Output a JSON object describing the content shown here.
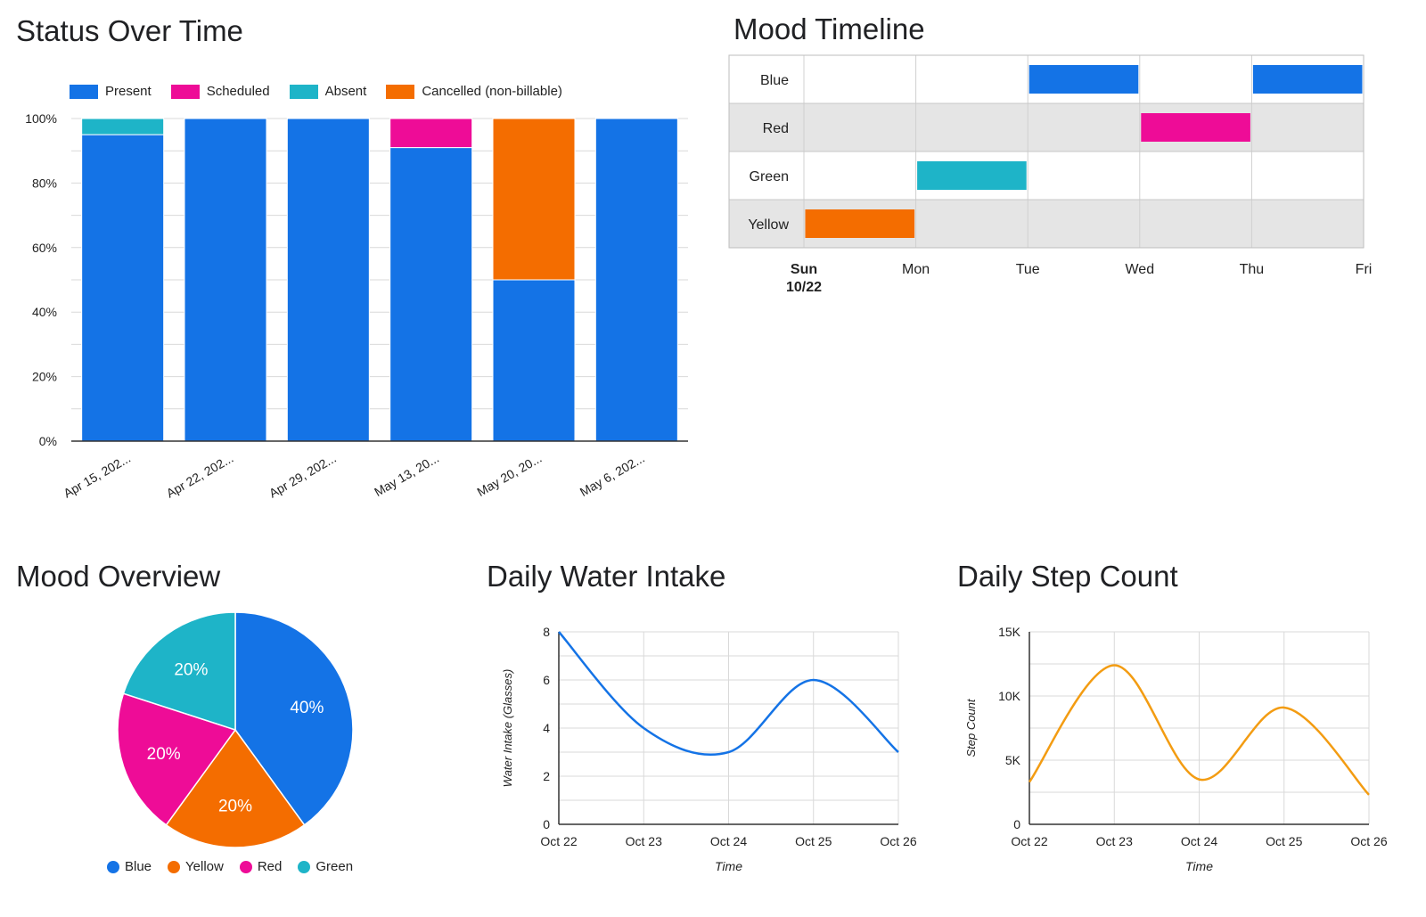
{
  "colors": {
    "blue": "#1473e6",
    "pink": "#ee0c97",
    "teal": "#1eb4c8",
    "orange": "#f46d00",
    "line_orange": "#f39c12",
    "grid": "#d9d9d9",
    "band": "#e5e5e5"
  },
  "chart_data": [
    {
      "type": "bar",
      "stacked": true,
      "percent": true,
      "title": "Status Over Time",
      "categories": [
        "Apr 15, 202...",
        "Apr 22, 202...",
        "Apr 29, 202...",
        "May 13, 20...",
        "May 20, 20...",
        "May 6, 202..."
      ],
      "series": [
        {
          "name": "Present",
          "color": "#1473e6",
          "values": [
            95,
            100,
            100,
            91,
            50,
            100
          ]
        },
        {
          "name": "Scheduled",
          "color": "#ee0c97",
          "values": [
            0,
            0,
            0,
            9,
            0,
            0
          ]
        },
        {
          "name": "Absent",
          "color": "#1eb4c8",
          "values": [
            5,
            0,
            0,
            0,
            0,
            0
          ]
        },
        {
          "name": "Cancelled (non-billable)",
          "color": "#f46d00",
          "values": [
            0,
            0,
            0,
            0,
            50,
            0
          ]
        }
      ],
      "yticks": [
        "0%",
        "20%",
        "40%",
        "60%",
        "80%",
        "100%"
      ],
      "ylim": [
        0,
        100
      ],
      "legend": "top",
      "grid": true
    },
    {
      "type": "timeline",
      "title": "Mood Timeline",
      "rows": [
        "Blue",
        "Red",
        "Green",
        "Yellow"
      ],
      "xticks": [
        "Mon",
        "Tue",
        "Wed",
        "Thu",
        "Fri"
      ],
      "first_tick": {
        "day": "Sun",
        "date": "10/22"
      },
      "bars": [
        {
          "row": "Blue",
          "start": 2,
          "end": 3,
          "color": "#1473e6"
        },
        {
          "row": "Blue",
          "start": 4,
          "end": 5,
          "color": "#1473e6"
        },
        {
          "row": "Red",
          "start": 3,
          "end": 4,
          "color": "#ee0c97"
        },
        {
          "row": "Green",
          "start": 1,
          "end": 2,
          "color": "#1eb4c8"
        },
        {
          "row": "Yellow",
          "start": 0,
          "end": 1,
          "color": "#f46d00"
        }
      ]
    },
    {
      "type": "pie",
      "title": "Mood Overview",
      "slices": [
        {
          "name": "Blue",
          "value": 40,
          "label": "40%",
          "color": "#1473e6"
        },
        {
          "name": "Yellow",
          "value": 20,
          "label": "20%",
          "color": "#f46d00"
        },
        {
          "name": "Red",
          "value": 20,
          "label": "20%",
          "color": "#ee0c97"
        },
        {
          "name": "Green",
          "value": 20,
          "label": "20%",
          "color": "#1eb4c8"
        }
      ],
      "legend": "bottom"
    },
    {
      "type": "line",
      "title": "Daily Water Intake",
      "x": [
        "Oct 22",
        "Oct 23",
        "Oct 24",
        "Oct 25",
        "Oct 26"
      ],
      "series": [
        {
          "color": "#1473e6",
          "values": [
            8,
            4,
            3,
            6,
            3
          ]
        }
      ],
      "xlabel": "Time",
      "ylabel": "Water Intake (Glasses)",
      "yticks": [
        "0",
        "2",
        "4",
        "6",
        "8"
      ],
      "ylim": [
        0,
        8
      ],
      "grid": true
    },
    {
      "type": "line",
      "title": "Daily Step Count",
      "x": [
        "Oct 22",
        "Oct 23",
        "Oct 24",
        "Oct 25",
        "Oct 26"
      ],
      "series": [
        {
          "color": "#f39c12",
          "values": [
            3300,
            12400,
            3500,
            9100,
            2300
          ]
        }
      ],
      "xlabel": "Time",
      "ylabel": "Step Count",
      "yticks": [
        "0",
        "5K",
        "10K",
        "15K"
      ],
      "ylim": [
        0,
        15000
      ],
      "grid": true
    }
  ]
}
